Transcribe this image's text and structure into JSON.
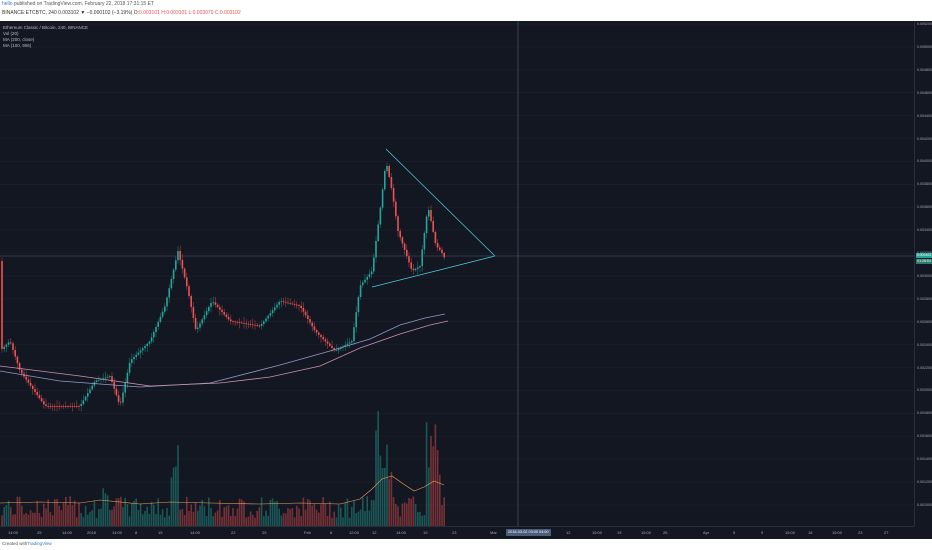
{
  "header": {
    "author": "hello",
    "published": "published on TradingView.com, February 22, 2018 17:31:15 ET",
    "symbol_line": "BINANCE:ETCBTC, 240",
    "ohlc_pre": "0.003102 ▼ −0.000102 (−3.19%) O:",
    "ohlc_rest": "0.003101 H:0.003101 L:0.003079 C:0.003102"
  },
  "legend": {
    "title": "Ethereum Classic / Bitcoin, 240, BINANCE",
    "vol": "Vol (20)",
    "ma1": "MA (200, close)",
    "ma2": "MA (100, 906)"
  },
  "price_axis": {
    "labels": [
      "0.005200",
      "0.005000",
      "0.004800",
      "0.004600",
      "0.004400",
      "0.004200",
      "0.004000",
      "0.003800",
      "0.003600",
      "0.003400",
      "0.003200",
      "0.003000",
      "0.002800",
      "0.002600",
      "0.002400",
      "0.002200",
      "0.002000",
      "0.001800",
      "0.001600",
      "0.001400",
      "0.001200",
      "0.001000"
    ],
    "current": "0.003102",
    "current_sub": "01:28:54"
  },
  "time_axis": {
    "labels": [
      "14:00",
      "25",
      "14:00",
      "2018",
      "14:00",
      "8",
      "15",
      "14:00",
      "22",
      "29",
      "Feb",
      "8",
      "12:00",
      "12",
      "14:00",
      "19",
      "23",
      "Mar",
      "14:00",
      "12",
      "15:00",
      "19",
      "15:00",
      "26",
      "Apr",
      "5",
      "9",
      "15:00",
      "16",
      "15:00",
      "23",
      "27"
    ],
    "crosshair": "2018-03-02 03:00 04:00"
  },
  "footer": {
    "created_with": "Created with",
    "brand": "TradingView"
  },
  "colors": {
    "background": "#131722",
    "up": "#26a69a",
    "down": "#ef5350",
    "ma200": "#9598c9",
    "ma100": "#c98fb0",
    "triangle": "#4dd0e1"
  }
}
